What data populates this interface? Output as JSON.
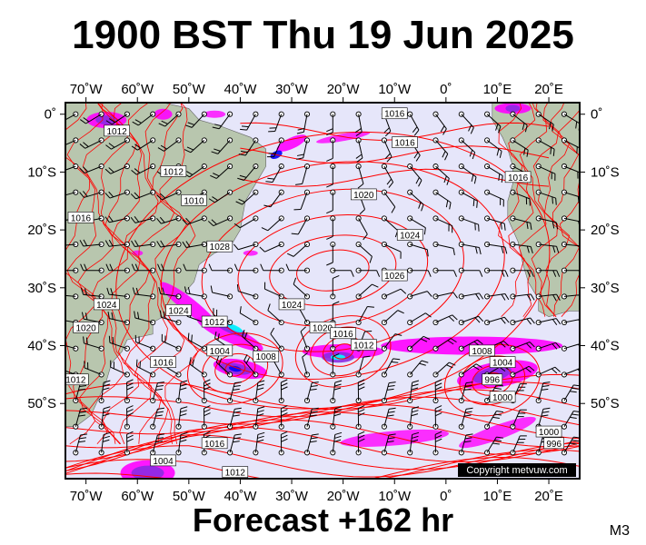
{
  "title": "1900 BST Thu 19 Jun 2025",
  "footer": "Forecast +162 hr",
  "model": "M3",
  "copyright": "Copyright metvuw.com",
  "lon_ticks": [
    {
      "lon": -70,
      "label": "70˚W"
    },
    {
      "lon": -60,
      "label": "60˚W"
    },
    {
      "lon": -50,
      "label": "50˚W"
    },
    {
      "lon": -40,
      "label": "40˚W"
    },
    {
      "lon": -30,
      "label": "30˚W"
    },
    {
      "lon": -20,
      "label": "20˚W"
    },
    {
      "lon": -10,
      "label": "10˚W"
    },
    {
      "lon": 0,
      "label": "0˚"
    },
    {
      "lon": 10,
      "label": "10˚E"
    },
    {
      "lon": 20,
      "label": "20˚E"
    }
  ],
  "lat_ticks": [
    {
      "lat": 0,
      "label": "0˚"
    },
    {
      "lat": -10,
      "label": "10˚S"
    },
    {
      "lat": -20,
      "label": "20˚S"
    },
    {
      "lat": -30,
      "label": "30˚S"
    },
    {
      "lat": -40,
      "label": "40˚S"
    },
    {
      "lat": -50,
      "label": "50˚S"
    }
  ],
  "isobar_labels": [
    {
      "text": "1016",
      "lon": -10,
      "lat": 0
    },
    {
      "text": "1012",
      "lon": -64,
      "lat": -3
    },
    {
      "text": "1016",
      "lon": -8,
      "lat": -5
    },
    {
      "text": "1012",
      "lon": -53,
      "lat": -10
    },
    {
      "text": "1016",
      "lon": 14,
      "lat": -11
    },
    {
      "text": "1020",
      "lon": -16,
      "lat": -14
    },
    {
      "text": "1010",
      "lon": -49,
      "lat": -15
    },
    {
      "text": "1016",
      "lon": -71,
      "lat": -18
    },
    {
      "text": "1024",
      "lon": -7,
      "lat": -21
    },
    {
      "text": "1026",
      "lon": -10,
      "lat": -28
    },
    {
      "text": "1028",
      "lon": -44,
      "lat": -23
    },
    {
      "text": "1024",
      "lon": -52,
      "lat": -34
    },
    {
      "text": "1024",
      "lon": -30,
      "lat": -33
    },
    {
      "text": "1024",
      "lon": -66,
      "lat": -33
    },
    {
      "text": "1020",
      "lon": -70,
      "lat": -37
    },
    {
      "text": "1012",
      "lon": -45,
      "lat": -36
    },
    {
      "text": "1020",
      "lon": -24,
      "lat": -37
    },
    {
      "text": "1016",
      "lon": -20,
      "lat": -38
    },
    {
      "text": "1012",
      "lon": -16,
      "lat": -40
    },
    {
      "text": "1008",
      "lon": -35,
      "lat": -42
    },
    {
      "text": "1004",
      "lon": -44,
      "lat": -41
    },
    {
      "text": "1008",
      "lon": 7,
      "lat": -41
    },
    {
      "text": "1004",
      "lon": 11,
      "lat": -43
    },
    {
      "text": "996",
      "lon": 9,
      "lat": -46
    },
    {
      "text": "1000",
      "lon": 11,
      "lat": -49
    },
    {
      "text": "1012",
      "lon": -72,
      "lat": -46
    },
    {
      "text": "1000",
      "lon": 20,
      "lat": -55
    },
    {
      "text": "996",
      "lon": 21,
      "lat": -57
    },
    {
      "text": "1016",
      "lon": -45,
      "lat": -57
    },
    {
      "text": "1004",
      "lon": -55,
      "lat": -60
    },
    {
      "text": "1012",
      "lon": -41,
      "lat": -62
    },
    {
      "text": "1016",
      "lon": -55,
      "lat": -43
    }
  ],
  "colors": {
    "ocean": "#e6e6fa",
    "land": "#b8c6ae",
    "isobar": "#ff0000",
    "rain_light": "#ff00ff",
    "rain_mid": "#8a2be2",
    "rain_heavy": "#0000ff",
    "rain_extreme": "#00ffff",
    "wind": "#000000"
  }
}
